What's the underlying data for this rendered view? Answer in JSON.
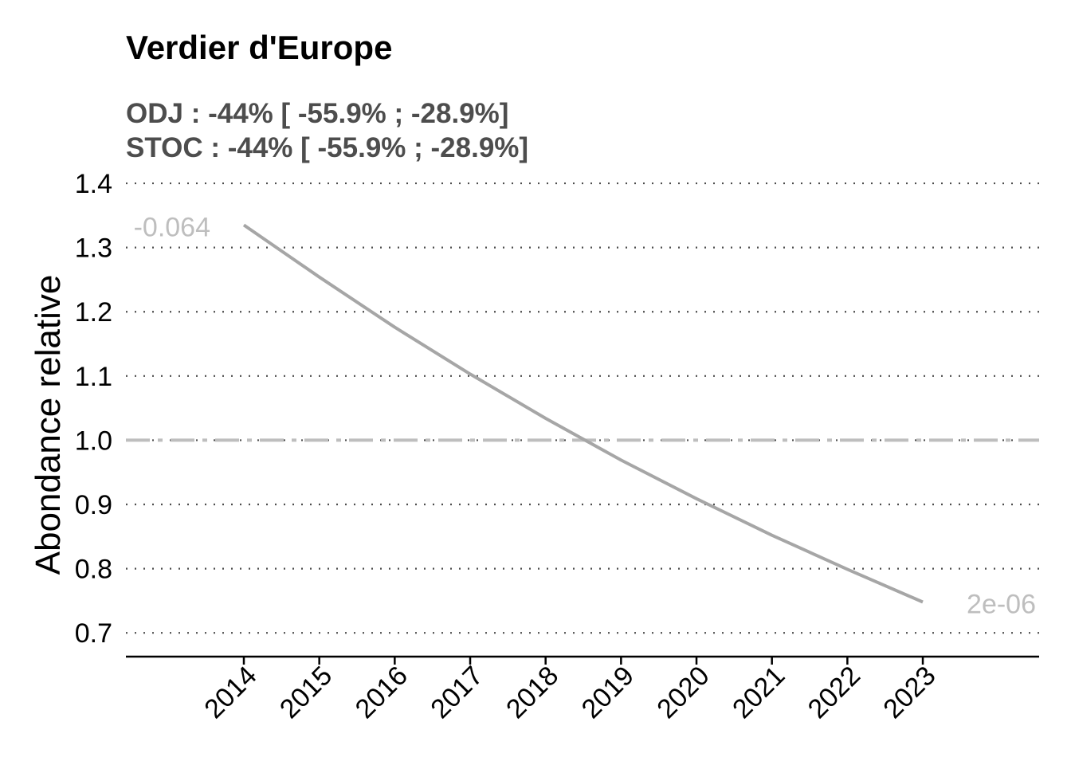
{
  "chart_data": {
    "type": "line",
    "title": "Verdier d'Europe",
    "subtitle_lines": [
      "ODJ : -44% [ -55.9% ; -28.9%]",
      "STOC : -44% [ -55.9% ; -28.9%]"
    ],
    "xlabel": "",
    "ylabel": "Abondance relative",
    "categories": [
      "2014",
      "2015",
      "2016",
      "2017",
      "2018",
      "2019",
      "2020",
      "2021",
      "2022",
      "2023"
    ],
    "series": [
      {
        "values": [
          1.335,
          1.254,
          1.176,
          1.103,
          1.034,
          0.969,
          0.909,
          0.852,
          0.799,
          0.748
        ]
      }
    ],
    "yticks": [
      "0.7",
      "0.8",
      "0.9",
      "1.0",
      "1.1",
      "1.2",
      "1.3",
      "1.4"
    ],
    "ylim": [
      0.663,
      1.41
    ],
    "reference_line": {
      "y": 1.0,
      "style": "dashed"
    },
    "annotations": {
      "start": "-0.064",
      "end": "2e-06"
    },
    "grid": "horizontal dotted",
    "colors": {
      "line": "#a6a6a6",
      "reference": "#bebebe",
      "annotation": "#bebebe",
      "grid": "#4d4d4d",
      "subtitle": "#4d4d4d"
    }
  }
}
